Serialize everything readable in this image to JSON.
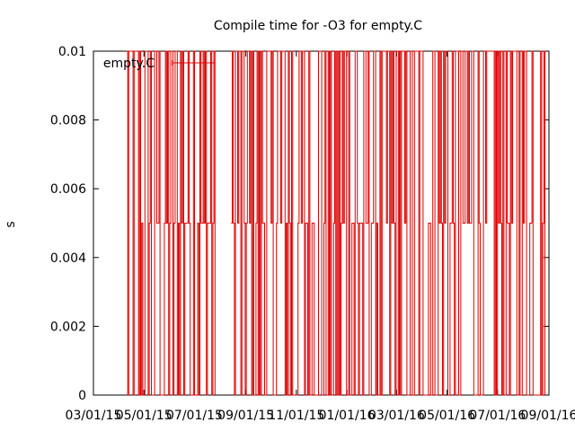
{
  "colors": {
    "series": "#dd0000",
    "axis": "#000000",
    "background": "#ffffff"
  },
  "chart_data": {
    "type": "line",
    "title": "Compile time for -O3 for empty.C",
    "xlabel": "",
    "ylabel": "s",
    "xlim": [
      "03/01/15",
      "09/01/16"
    ],
    "ylim": [
      0,
      0.01
    ],
    "grid": false,
    "legend_position": "top-left",
    "x_tick_labels": [
      "03/01/15",
      "05/01/15",
      "07/01/15",
      "09/01/15",
      "11/01/15",
      "01/01/16",
      "03/01/16",
      "05/01/16",
      "07/01/16",
      "09/01/16"
    ],
    "y_tick_labels": [
      "0",
      "0.002",
      "0.004",
      "0.006",
      "0.008",
      "0.01"
    ],
    "y_ticks": [
      0,
      0.002,
      0.004,
      0.006,
      0.008,
      0.01
    ],
    "series": [
      {
        "name": "empty.C",
        "x_start": "04/10/15",
        "x_end": "08/28/16",
        "value_levels": [
          0,
          0.005,
          0.01
        ],
        "gap_periods": [
          [
            "07/27/15",
            "08/14/15"
          ]
        ],
        "note_values": "measurements oscillate rapidly between 0, 0.005 and 0.01 s throughout the range"
      }
    ]
  }
}
